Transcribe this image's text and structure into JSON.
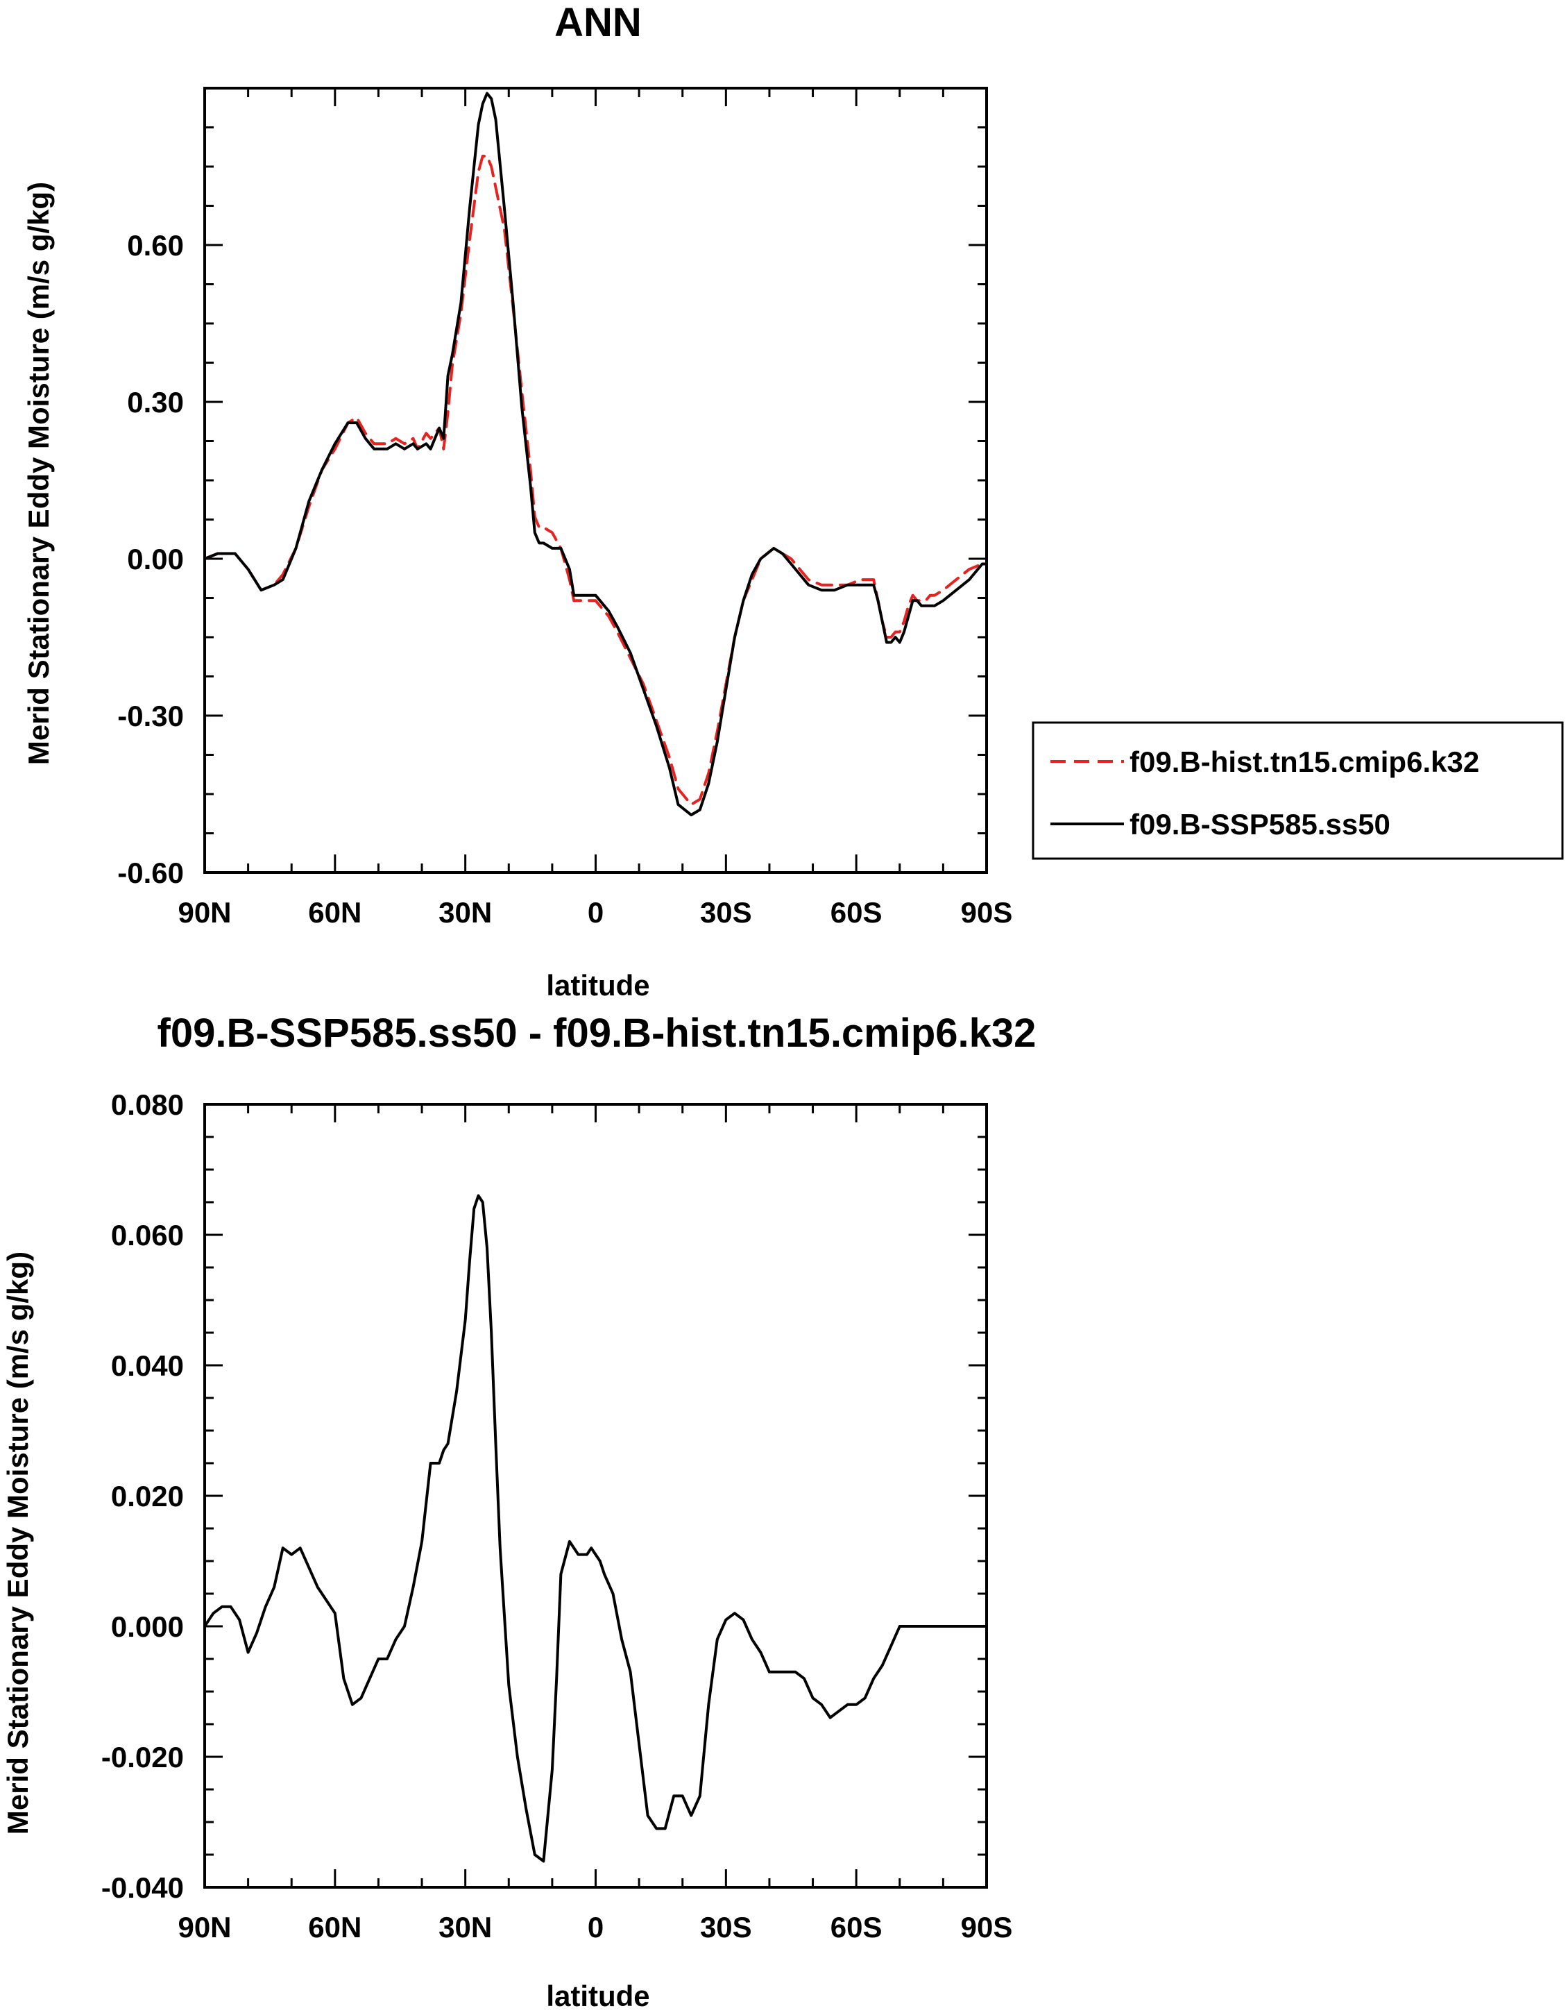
{
  "chart_data": [
    {
      "type": "line",
      "title": "ANN",
      "xlabel": "latitude",
      "ylabel": "Merid Stationary Eddy Moisture (m/s g/kg)",
      "xlim": [
        90,
        -90
      ],
      "ylim": [
        -0.6,
        0.9
      ],
      "x_tick_values": [
        90,
        60,
        30,
        0,
        -30,
        -60,
        -90
      ],
      "x_tick_labels": [
        "90N",
        "60N",
        "30N",
        "0",
        "30S",
        "60S",
        "90S"
      ],
      "y_tick_values": [
        -0.6,
        -0.3,
        0.0,
        0.3,
        0.6
      ],
      "y_tick_labels": [
        "-0.60",
        "-0.30",
        "0.00",
        "0.30",
        "0.60"
      ],
      "grid": false,
      "legend_position": "right",
      "series": [
        {
          "name": "f09.B-hist.tn15.cmip6.k32",
          "color": "#e8221e",
          "dash": "dashed",
          "x": [
            90,
            87,
            83,
            80,
            77,
            74,
            72,
            69,
            66,
            63,
            60,
            57,
            55,
            53,
            51,
            48,
            46,
            44,
            42,
            41,
            39,
            38,
            36,
            35,
            34,
            33,
            31,
            29,
            27,
            26,
            25,
            24,
            23,
            21,
            19,
            17,
            15,
            14,
            13,
            12,
            10,
            8,
            6,
            5,
            3,
            0,
            -3,
            -5,
            -8,
            -11,
            -14,
            -17,
            -19,
            -22,
            -24,
            -26,
            -28,
            -30,
            -32,
            -34,
            -36,
            -38,
            -41,
            -43,
            -45,
            -47,
            -49,
            -52,
            -55,
            -58,
            -61,
            -64,
            -65,
            -66,
            -67,
            -68,
            -69,
            -70,
            -71,
            -72,
            -73,
            -74,
            -75,
            -76,
            -77,
            -78,
            -80,
            -83,
            -86,
            -89,
            -90
          ],
          "y": [
            0.0,
            0.01,
            0.01,
            -0.02,
            -0.06,
            -0.05,
            -0.03,
            0.02,
            0.1,
            0.17,
            0.21,
            0.26,
            0.27,
            0.24,
            0.22,
            0.22,
            0.23,
            0.22,
            0.23,
            0.21,
            0.24,
            0.23,
            0.25,
            0.21,
            0.28,
            0.37,
            0.47,
            0.61,
            0.74,
            0.77,
            0.77,
            0.75,
            0.71,
            0.63,
            0.48,
            0.32,
            0.17,
            0.08,
            0.06,
            0.06,
            0.05,
            0.02,
            -0.04,
            -0.08,
            -0.08,
            -0.08,
            -0.11,
            -0.14,
            -0.19,
            -0.24,
            -0.31,
            -0.38,
            -0.44,
            -0.47,
            -0.46,
            -0.41,
            -0.33,
            -0.24,
            -0.15,
            -0.08,
            -0.04,
            0.0,
            0.02,
            0.01,
            0.0,
            -0.02,
            -0.04,
            -0.05,
            -0.05,
            -0.05,
            -0.04,
            -0.04,
            -0.08,
            -0.12,
            -0.15,
            -0.15,
            -0.14,
            -0.14,
            -0.12,
            -0.09,
            -0.07,
            -0.08,
            -0.08,
            -0.08,
            -0.07,
            -0.07,
            -0.06,
            -0.04,
            -0.02,
            -0.01,
            -0.01
          ]
        },
        {
          "name": "f09.B-SSP585.ss50",
          "color": "#000000",
          "dash": "solid",
          "x": [
            90,
            87,
            83,
            80,
            77,
            74,
            72,
            69,
            66,
            63,
            60,
            57,
            55,
            53,
            51,
            48,
            46,
            44,
            42,
            41,
            39,
            38,
            36,
            35,
            34,
            33,
            31,
            29,
            27,
            26,
            25,
            24,
            23,
            21,
            19,
            17,
            15,
            14,
            13,
            12,
            10,
            8,
            6,
            5,
            3,
            0,
            -3,
            -5,
            -8,
            -11,
            -14,
            -17,
            -19,
            -22,
            -24,
            -26,
            -28,
            -30,
            -32,
            -34,
            -36,
            -38,
            -41,
            -43,
            -45,
            -47,
            -49,
            -52,
            -55,
            -58,
            -61,
            -64,
            -65,
            -66,
            -67,
            -68,
            -69,
            -70,
            -71,
            -72,
            -73,
            -74,
            -75,
            -76,
            -77,
            -78,
            -80,
            -83,
            -86,
            -89,
            -90
          ],
          "y": [
            0.0,
            0.01,
            0.01,
            -0.02,
            -0.06,
            -0.05,
            -0.04,
            0.02,
            0.11,
            0.17,
            0.22,
            0.26,
            0.26,
            0.23,
            0.21,
            0.21,
            0.22,
            0.21,
            0.22,
            0.21,
            0.22,
            0.21,
            0.25,
            0.23,
            0.35,
            0.39,
            0.49,
            0.67,
            0.83,
            0.87,
            0.89,
            0.88,
            0.84,
            0.67,
            0.49,
            0.29,
            0.14,
            0.05,
            0.03,
            0.03,
            0.02,
            0.02,
            -0.02,
            -0.07,
            -0.07,
            -0.07,
            -0.1,
            -0.13,
            -0.18,
            -0.25,
            -0.32,
            -0.4,
            -0.47,
            -0.49,
            -0.48,
            -0.43,
            -0.35,
            -0.25,
            -0.15,
            -0.08,
            -0.03,
            0.0,
            0.02,
            0.01,
            -0.01,
            -0.03,
            -0.05,
            -0.06,
            -0.06,
            -0.05,
            -0.05,
            -0.05,
            -0.08,
            -0.12,
            -0.16,
            -0.16,
            -0.15,
            -0.16,
            -0.14,
            -0.11,
            -0.08,
            -0.08,
            -0.09,
            -0.09,
            -0.09,
            -0.09,
            -0.08,
            -0.06,
            -0.04,
            -0.01,
            -0.01
          ]
        }
      ]
    },
    {
      "type": "line",
      "title": "f09.B-SSP585.ss50 - f09.B-hist.tn15.cmip6.k32",
      "xlabel": "latitude",
      "ylabel": "Merid Stationary Eddy Moisture (m/s g/kg)",
      "xlim": [
        90,
        -90
      ],
      "ylim": [
        -0.04,
        0.08
      ],
      "x_tick_values": [
        90,
        60,
        30,
        0,
        -30,
        -60,
        -90
      ],
      "x_tick_labels": [
        "90N",
        "60N",
        "30N",
        "0",
        "30S",
        "60S",
        "90S"
      ],
      "y_tick_values": [
        -0.04,
        -0.02,
        0.0,
        0.02,
        0.04,
        0.06,
        0.08
      ],
      "y_tick_labels": [
        "-0.040",
        "-0.020",
        "0.000",
        "0.020",
        "0.040",
        "0.060",
        "0.080"
      ],
      "grid": false,
      "series": [
        {
          "color": "#000000",
          "dash": "solid",
          "x": [
            90,
            88,
            86,
            84,
            82,
            80,
            78,
            76,
            74,
            72,
            70,
            68,
            66,
            64,
            62,
            60,
            58,
            56,
            54,
            52,
            50,
            48,
            46,
            44,
            42,
            40,
            38,
            36,
            35,
            34,
            32,
            30,
            29,
            28,
            27,
            26,
            25,
            24,
            23,
            22,
            20,
            18,
            16,
            14,
            12,
            10,
            9,
            8,
            6,
            4,
            3,
            2,
            1,
            0,
            -1,
            -2,
            -4,
            -6,
            -8,
            -10,
            -12,
            -14,
            -16,
            -18,
            -20,
            -22,
            -24,
            -26,
            -28,
            -30,
            -32,
            -34,
            -36,
            -38,
            -40,
            -42,
            -44,
            -46,
            -48,
            -50,
            -52,
            -54,
            -56,
            -58,
            -60,
            -62,
            -64,
            -66,
            -68,
            -70,
            -72,
            -74,
            -76,
            -78,
            -80,
            -82,
            -84,
            -86,
            -88,
            -90
          ],
          "y": [
            0.0,
            0.002,
            0.003,
            0.003,
            0.001,
            -0.004,
            -0.001,
            0.003,
            0.006,
            0.012,
            0.011,
            0.012,
            0.009,
            0.006,
            0.004,
            0.002,
            -0.008,
            -0.012,
            -0.011,
            -0.008,
            -0.005,
            -0.005,
            -0.002,
            0.0,
            0.006,
            0.013,
            0.025,
            0.025,
            0.027,
            0.028,
            0.036,
            0.047,
            0.056,
            0.064,
            0.066,
            0.065,
            0.058,
            0.045,
            0.028,
            0.012,
            -0.009,
            -0.02,
            -0.028,
            -0.035,
            -0.036,
            -0.022,
            -0.008,
            0.008,
            0.013,
            0.011,
            0.011,
            0.011,
            0.012,
            0.011,
            0.01,
            0.008,
            0.005,
            -0.002,
            -0.007,
            -0.018,
            -0.029,
            -0.031,
            -0.031,
            -0.026,
            -0.026,
            -0.029,
            -0.026,
            -0.012,
            -0.002,
            0.001,
            0.002,
            0.001,
            -0.002,
            -0.004,
            -0.007,
            -0.007,
            -0.007,
            -0.007,
            -0.008,
            -0.011,
            -0.012,
            -0.014,
            -0.013,
            -0.012,
            -0.012,
            -0.011,
            -0.008,
            -0.006,
            -0.003,
            0.0,
            0.0,
            0.0,
            0.0,
            0.0,
            0.0,
            0.0,
            0.0,
            0.0,
            0.0,
            0.0
          ]
        }
      ]
    }
  ]
}
